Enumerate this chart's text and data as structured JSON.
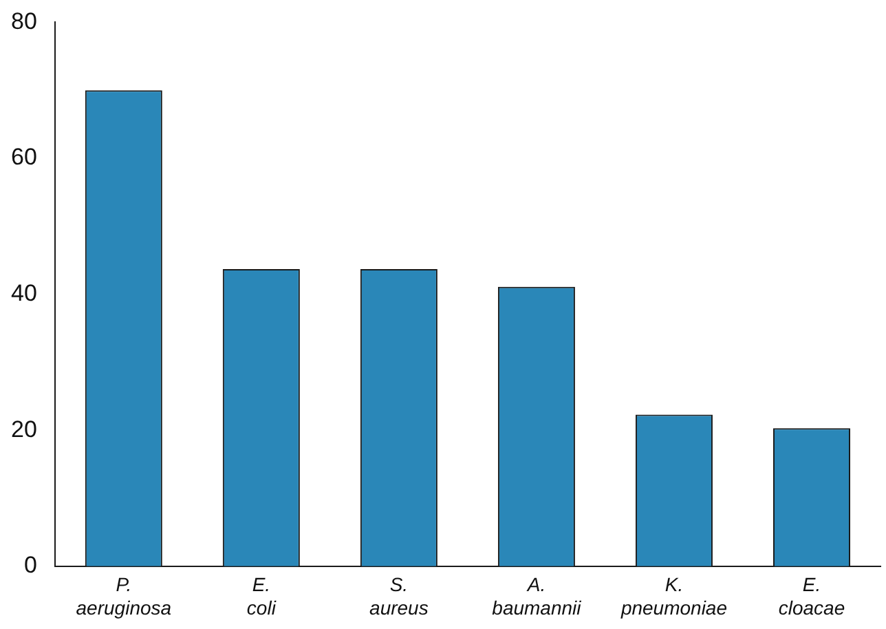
{
  "chart_data": {
    "type": "bar",
    "categories": [
      "P. aeruginosa",
      "E. coli",
      "S. aureus",
      "A. baumannii",
      "K. pneumoniae",
      "E. cloacae"
    ],
    "values": [
      70,
      43.7,
      43.7,
      41.1,
      22.3,
      20.3
    ],
    "color": "#2a87b8",
    "ylim": [
      0,
      80
    ],
    "yticks": [
      0,
      20,
      40,
      60,
      80
    ],
    "grid": false,
    "legend": false
  }
}
